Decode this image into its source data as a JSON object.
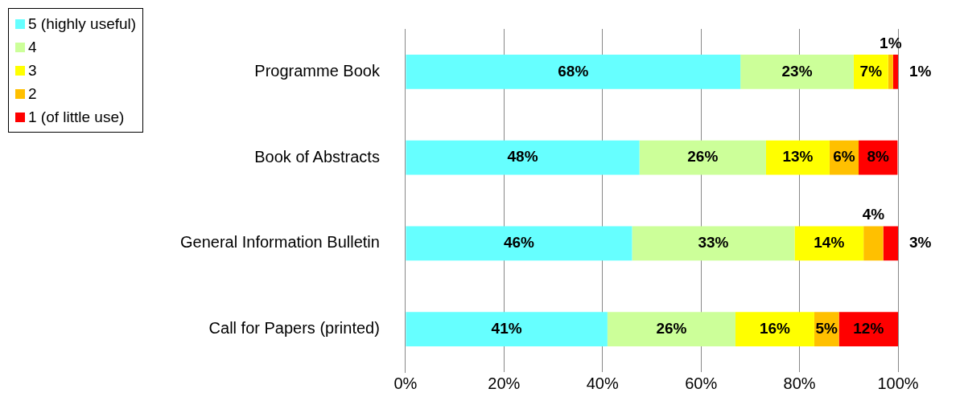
{
  "chart_data": {
    "type": "bar",
    "orientation": "horizontal",
    "stacked": true,
    "categories": [
      "Programme Book",
      "Book of Abstracts",
      "General Information Bulletin",
      "Call for Papers (printed)"
    ],
    "series": [
      {
        "name": "5 (highly useful)",
        "color": "#66ffff",
        "values": [
          68,
          47.5,
          46,
          41
        ],
        "value_labels": [
          "68%",
          "48%",
          "46%",
          "41%"
        ]
      },
      {
        "name": "4",
        "color": "#ccff99",
        "values": [
          23,
          25.7,
          33,
          26
        ],
        "value_labels": [
          "23%",
          "26%",
          "33%",
          "26%"
        ]
      },
      {
        "name": "3",
        "color": "#ffff00",
        "values": [
          7,
          12.9,
          14,
          16
        ],
        "value_labels": [
          "7%",
          "13%",
          "14%",
          "16%"
        ]
      },
      {
        "name": "2",
        "color": "#ffc000",
        "values": [
          1,
          5.9,
          4,
          5
        ],
        "value_labels": [
          "1%",
          "6%",
          "4%",
          "5%"
        ]
      },
      {
        "name": "1 (of little use)",
        "color": "#ff0000",
        "values": [
          1,
          7.9,
          3,
          12
        ],
        "value_labels": [
          "1%",
          "8%",
          "3%",
          "12%"
        ]
      }
    ],
    "xlim": [
      0,
      100
    ],
    "xticks": [
      {
        "value": 0,
        "label": "0%"
      },
      {
        "value": 20,
        "label": "20%"
      },
      {
        "value": 40,
        "label": "40%"
      },
      {
        "value": 60,
        "label": "60%"
      },
      {
        "value": 80,
        "label": "80%"
      },
      {
        "value": 100,
        "label": "100%"
      }
    ],
    "grid": "x",
    "legend": "top left"
  }
}
